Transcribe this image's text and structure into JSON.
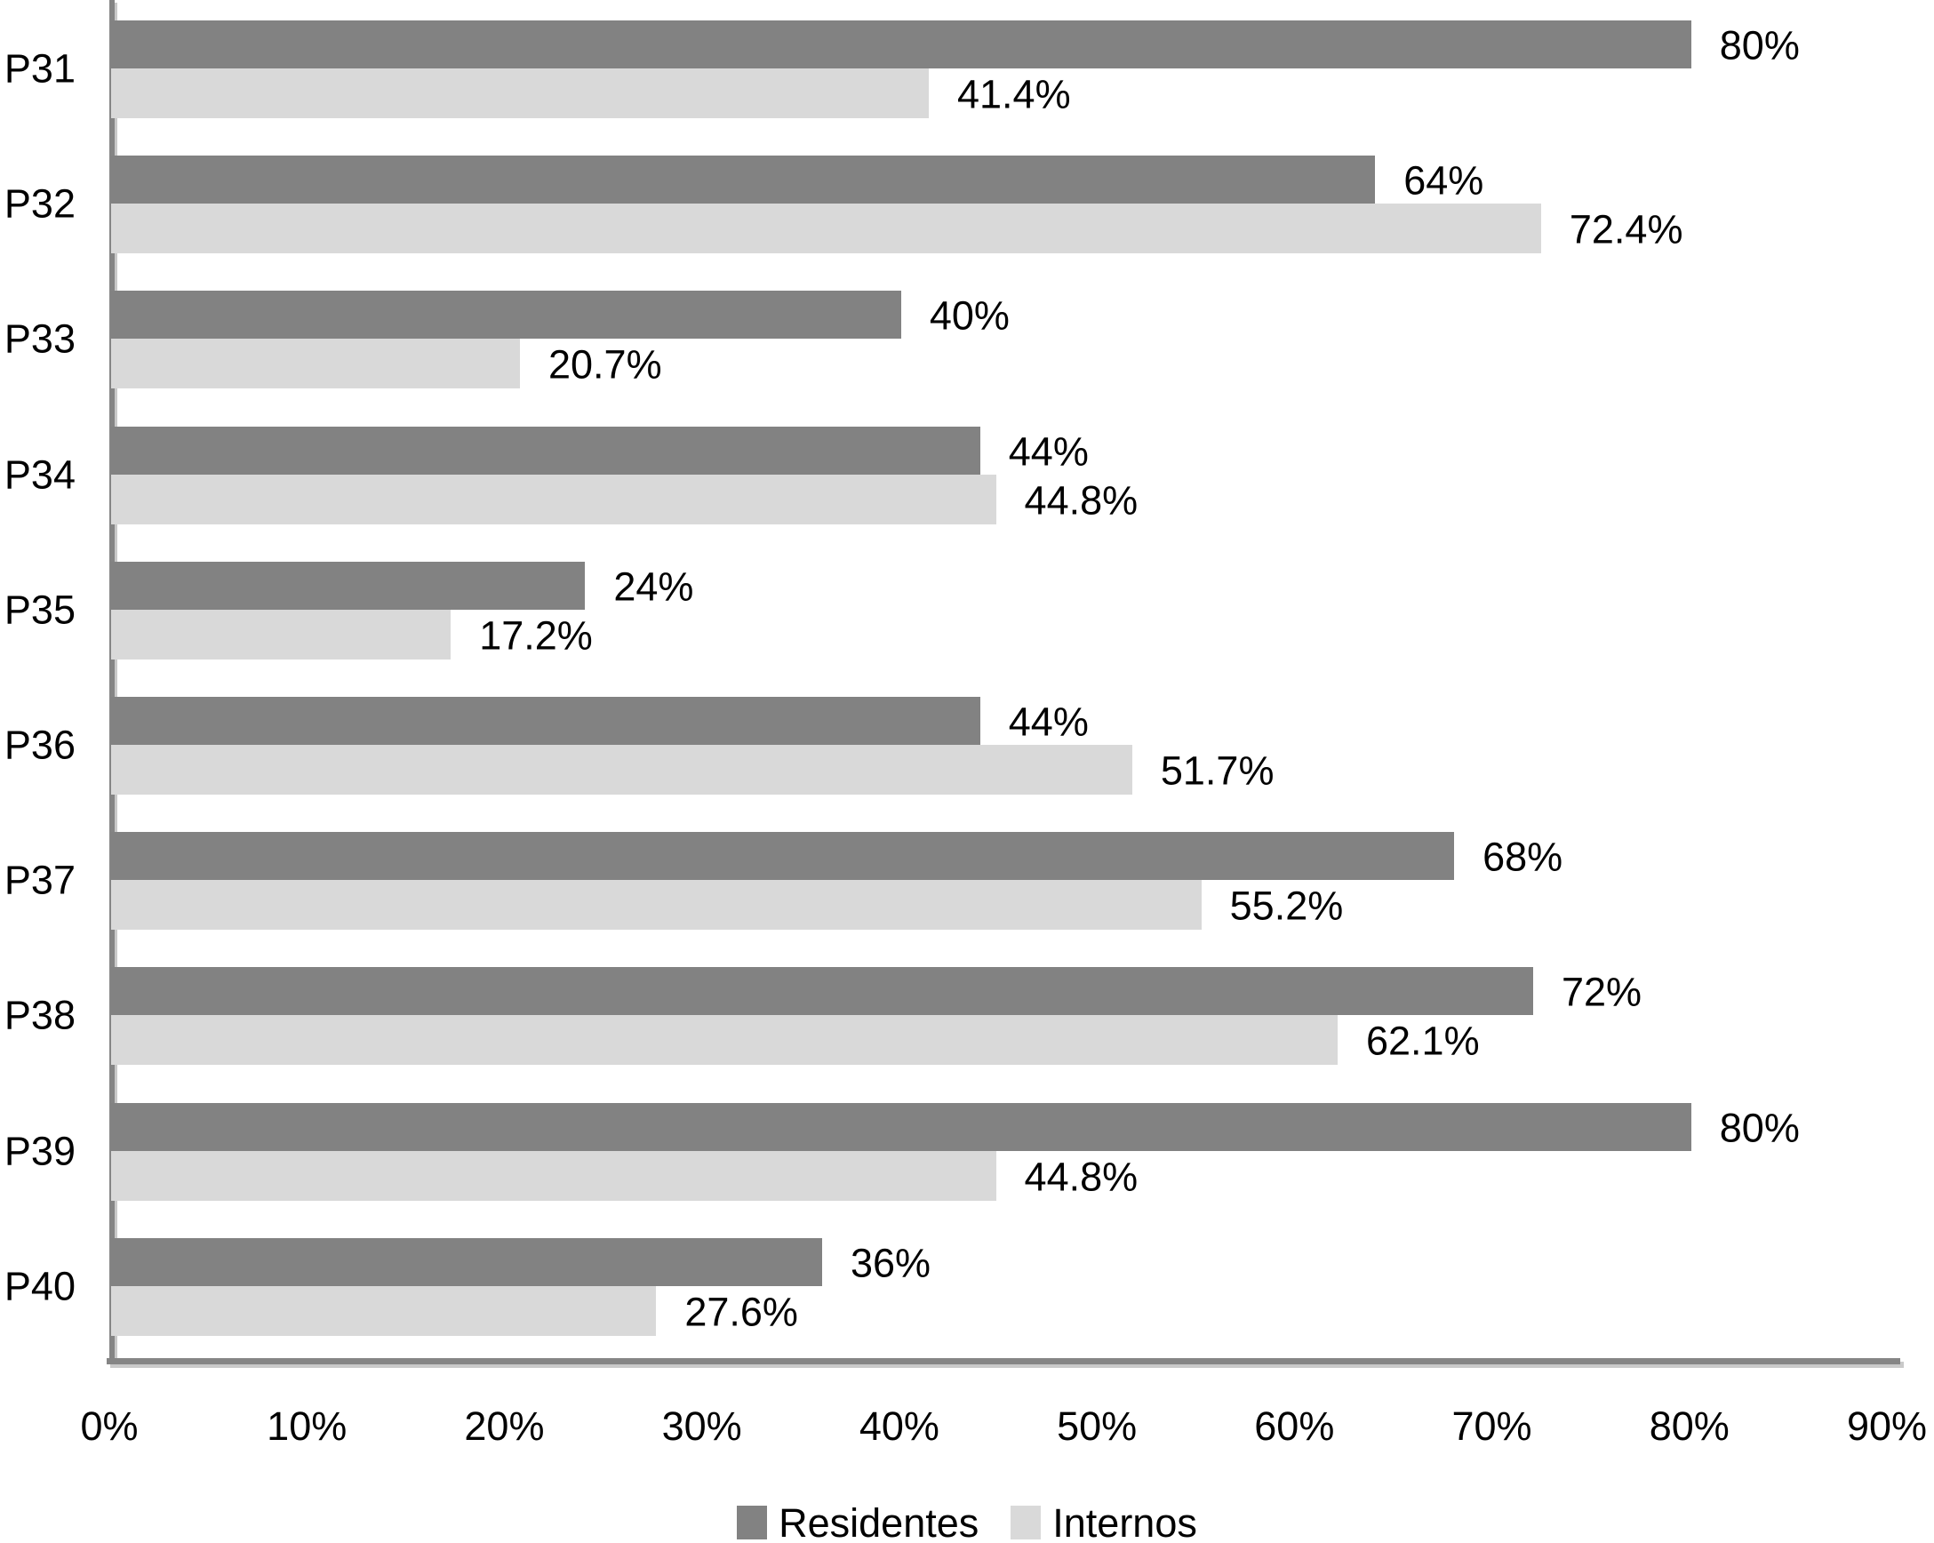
{
  "chart_data": {
    "type": "bar",
    "orientation": "horizontal",
    "title": "",
    "xlabel": "",
    "ylabel": "",
    "categories": [
      "P31",
      "P32",
      "P33",
      "P34",
      "P35",
      "P36",
      "P37",
      "P38",
      "P39",
      "P40"
    ],
    "series": [
      {
        "name": "Residentes",
        "color": "#828282",
        "values": [
          80,
          64,
          40,
          44,
          24,
          44,
          68,
          72,
          80,
          36
        ],
        "labels": [
          "80%",
          "64%",
          "40%",
          "44%",
          "24%",
          "44%",
          "68%",
          "72%",
          "80%",
          "36%"
        ]
      },
      {
        "name": "Internos",
        "color": "#d9d9d9",
        "values": [
          41.4,
          72.4,
          20.7,
          44.8,
          17.2,
          51.7,
          55.2,
          62.1,
          44.8,
          27.6
        ],
        "labels": [
          "41.4%",
          "72.4%",
          "20.7%",
          "44.8%",
          "17.2%",
          "51.7%",
          "55.2%",
          "62.1%",
          "44.8%",
          "27.6%"
        ]
      }
    ],
    "x_axis": {
      "min": 0,
      "max": 90,
      "ticks": [
        "0%",
        "10%",
        "20%",
        "30%",
        "40%",
        "50%",
        "60%",
        "70%",
        "80%",
        "90%"
      ]
    },
    "grid": "off",
    "legend": {
      "position": "bottom",
      "items": [
        "Residentes",
        "Internos"
      ]
    },
    "colors": {
      "axis_line": "#858585",
      "axis_shadow": "#c9c9c9",
      "text": "#000000",
      "background": "#ffffff"
    }
  }
}
